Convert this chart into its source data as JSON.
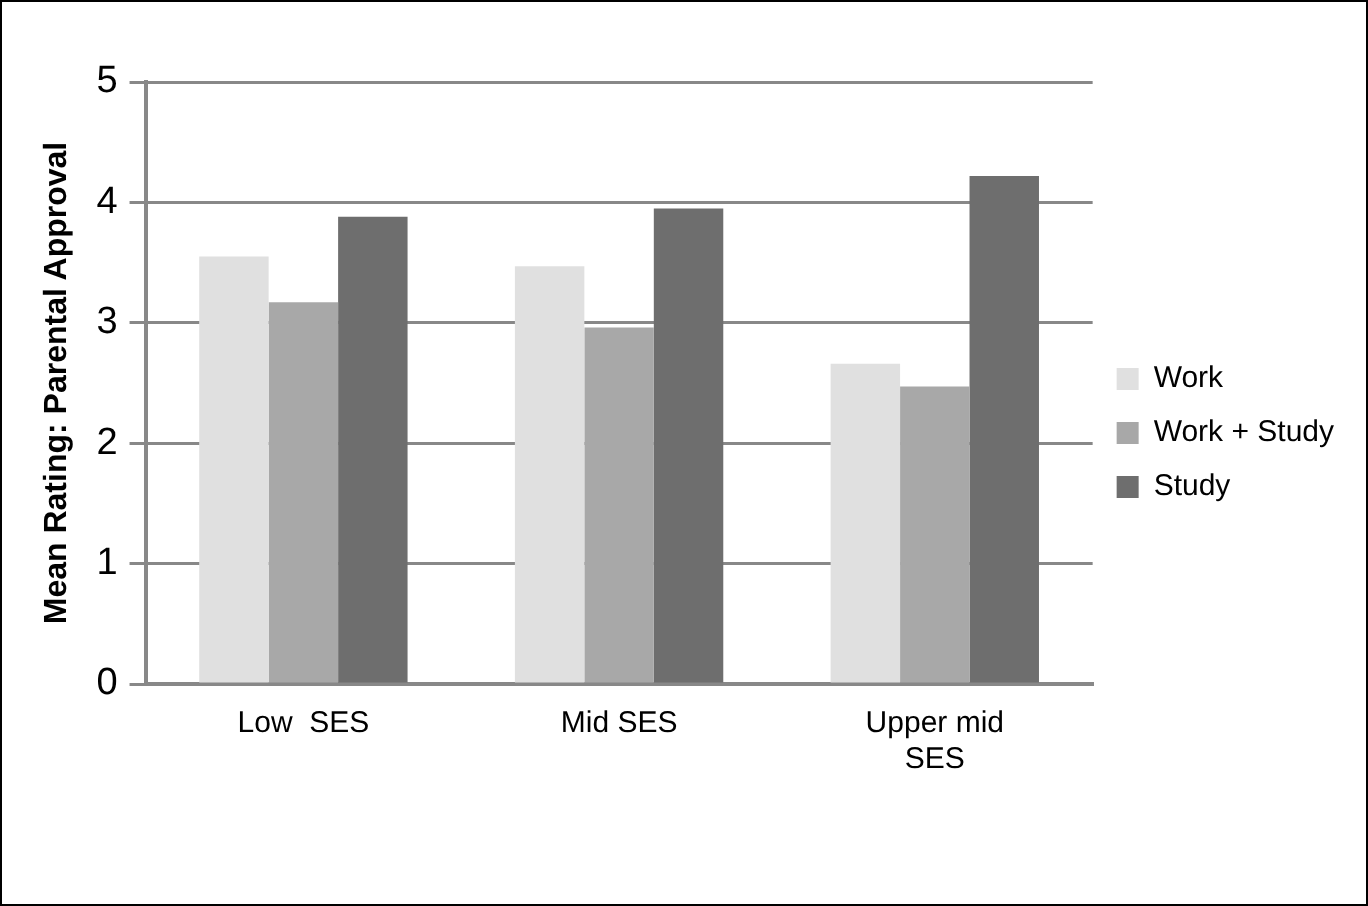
{
  "chart_data": {
    "type": "bar",
    "ylabel": "Mean Rating: Parental Approval",
    "categories": [
      "Low  SES",
      "Mid SES",
      "Upper mid SES"
    ],
    "series": [
      {
        "name": "Work",
        "color": "#e0e0e0",
        "values": [
          3.55,
          3.47,
          2.66
        ]
      },
      {
        "name": "Work + Study",
        "color": "#a8a8a8",
        "values": [
          3.17,
          2.96,
          2.47
        ]
      },
      {
        "name": "Study",
        "color": "#6e6e6e",
        "values": [
          3.88,
          3.95,
          4.22
        ]
      }
    ],
    "ylim": [
      0,
      5
    ],
    "yticks": [
      0,
      1,
      2,
      3,
      4,
      5
    ],
    "grid": "y",
    "legend": "right"
  }
}
